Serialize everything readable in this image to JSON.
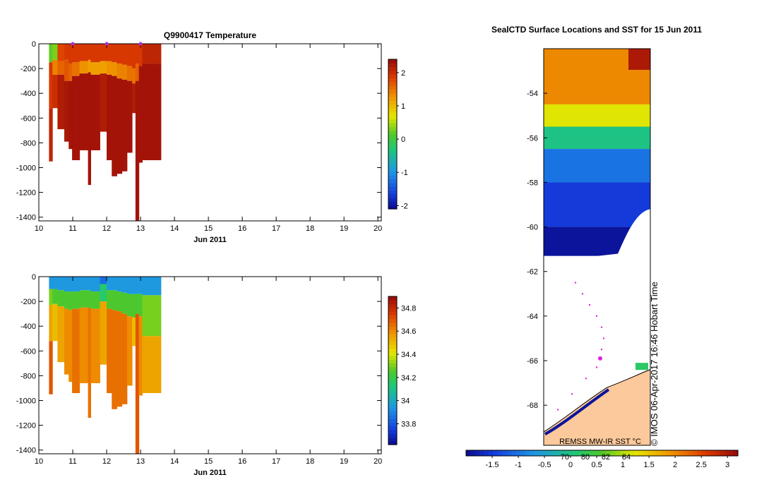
{
  "chart_data": [
    {
      "type": "heatmap",
      "title": "Q9900417  Temperature",
      "xlabel": "Jun 2011",
      "x_ticks": [
        10,
        11,
        12,
        13,
        14,
        15,
        16,
        17,
        18,
        19,
        20
      ],
      "xlim": [
        10,
        20.1
      ],
      "y_ticks": [
        0,
        -200,
        -400,
        -600,
        -800,
        -1000,
        -1200,
        -1400
      ],
      "ylim": [
        -1430,
        0
      ],
      "colorbar_ticks": [
        -2,
        -1,
        0,
        1,
        2
      ],
      "colorbar_range": [
        -2.1,
        2.4
      ],
      "profile_markers_x": [
        11.0,
        12.0,
        13.0
      ],
      "profiles": [
        {
          "x0": 10.3,
          "x1": 10.4,
          "bottom": -950,
          "layers": [
            [
              0,
              -150,
              0.2
            ],
            [
              -150,
              -520,
              1.9
            ],
            [
              -520,
              -950,
              2.1
            ]
          ]
        },
        {
          "x0": 10.4,
          "x1": 10.55,
          "bottom": -520,
          "layers": [
            [
              0,
              -130,
              0.3
            ],
            [
              -130,
              -250,
              1.4
            ],
            [
              -250,
              -520,
              2.0
            ]
          ]
        },
        {
          "x0": 10.55,
          "x1": 10.75,
          "bottom": -690,
          "layers": [
            [
              0,
              -140,
              1.8
            ],
            [
              -140,
              -250,
              1.6
            ],
            [
              -250,
              -690,
              2.2
            ]
          ]
        },
        {
          "x0": 10.75,
          "x1": 10.88,
          "bottom": -790,
          "layers": [
            [
              0,
              -130,
              1.9
            ],
            [
              -130,
              -300,
              1.7
            ],
            [
              -300,
              -790,
              2.25
            ]
          ]
        },
        {
          "x0": 10.88,
          "x1": 10.98,
          "bottom": -850,
          "layers": [
            [
              0,
              -160,
              1.9
            ],
            [
              -160,
              -300,
              1.6
            ],
            [
              -300,
              -850,
              2.3
            ]
          ]
        },
        {
          "x0": 10.98,
          "x1": 11.2,
          "bottom": -940,
          "layers": [
            [
              0,
              -150,
              1.9
            ],
            [
              -150,
              -260,
              1.5
            ],
            [
              -260,
              -940,
              2.3
            ]
          ]
        },
        {
          "x0": 11.2,
          "x1": 11.45,
          "bottom": -860,
          "layers": [
            [
              0,
              -140,
              1.9
            ],
            [
              -140,
              -240,
              1.3
            ],
            [
              -240,
              -860,
              2.3
            ]
          ]
        },
        {
          "x0": 11.45,
          "x1": 11.53,
          "bottom": -1140,
          "layers": [
            [
              0,
              -130,
              1.9
            ],
            [
              -130,
              -230,
              1.2
            ],
            [
              -230,
              -1140,
              2.3
            ]
          ]
        },
        {
          "x0": 11.53,
          "x1": 11.8,
          "bottom": -860,
          "layers": [
            [
              0,
              -150,
              1.9
            ],
            [
              -150,
              -250,
              1.2
            ],
            [
              -250,
              -860,
              2.3
            ]
          ]
        },
        {
          "x0": 11.8,
          "x1": 12.0,
          "bottom": -710,
          "layers": [
            [
              0,
              -140,
              1.9
            ],
            [
              -140,
              -240,
              1.2
            ],
            [
              -240,
              -710,
              2.2
            ]
          ]
        },
        {
          "x0": 12.0,
          "x1": 12.15,
          "bottom": -940,
          "layers": [
            [
              0,
              -140,
              1.9
            ],
            [
              -140,
              -250,
              1.3
            ],
            [
              -250,
              -940,
              2.3
            ]
          ]
        },
        {
          "x0": 12.15,
          "x1": 12.3,
          "bottom": -1070,
          "layers": [
            [
              0,
              -150,
              1.9
            ],
            [
              -150,
              -260,
              1.3
            ],
            [
              -260,
              -1070,
              2.3
            ]
          ]
        },
        {
          "x0": 12.3,
          "x1": 12.45,
          "bottom": -1050,
          "layers": [
            [
              0,
              -160,
              1.9
            ],
            [
              -160,
              -280,
              1.4
            ],
            [
              -280,
              -1050,
              2.3
            ]
          ]
        },
        {
          "x0": 12.45,
          "x1": 12.6,
          "bottom": -1030,
          "layers": [
            [
              0,
              -170,
              1.9
            ],
            [
              -170,
              -290,
              1.4
            ],
            [
              -290,
              -1030,
              2.3
            ]
          ]
        },
        {
          "x0": 12.6,
          "x1": 12.75,
          "bottom": -880,
          "layers": [
            [
              0,
              -180,
              1.9
            ],
            [
              -180,
              -300,
              1.5
            ],
            [
              -300,
              -880,
              2.3
            ]
          ]
        },
        {
          "x0": 12.75,
          "x1": 12.85,
          "bottom": -560,
          "layers": [
            [
              0,
              -200,
              1.9
            ],
            [
              -200,
              -320,
              1.5
            ],
            [
              -320,
              -560,
              2.2
            ]
          ]
        },
        {
          "x0": 12.85,
          "x1": 12.95,
          "bottom": -1430,
          "layers": [
            [
              0,
              -160,
              1.9
            ],
            [
              -160,
              -300,
              1.6
            ],
            [
              -300,
              -1430,
              2.3
            ]
          ]
        },
        {
          "x0": 12.95,
          "x1": 13.05,
          "bottom": -960,
          "layers": [
            [
              0,
              -180,
              1.9
            ],
            [
              -180,
              -960,
              2.3
            ]
          ]
        },
        {
          "x0": 13.05,
          "x1": 13.6,
          "bottom": -940,
          "layers": [
            [
              0,
              -160,
              2.1
            ],
            [
              -160,
              -940,
              2.3
            ]
          ]
        }
      ]
    },
    {
      "type": "heatmap",
      "title": "",
      "xlabel": "Jun 2011",
      "x_ticks": [
        10,
        11,
        12,
        13,
        14,
        15,
        16,
        17,
        18,
        19,
        20
      ],
      "xlim": [
        10,
        20.1
      ],
      "y_ticks": [
        0,
        -200,
        -400,
        -600,
        -800,
        -1000,
        -1200,
        -1400
      ],
      "ylim": [
        -1430,
        0
      ],
      "colorbar_ticks": [
        33.8,
        34,
        34.2,
        34.4,
        34.6,
        34.8
      ],
      "colorbar_range": [
        33.62,
        34.9
      ],
      "profiles": [
        {
          "x0": 10.3,
          "x1": 10.4,
          "bottom": -950,
          "layers": [
            [
              0,
              -100,
              33.95
            ],
            [
              -100,
              -230,
              34.3
            ],
            [
              -230,
              -520,
              34.55
            ],
            [
              -520,
              -950,
              34.7
            ]
          ]
        },
        {
          "x0": 10.4,
          "x1": 10.55,
          "bottom": -520,
          "layers": [
            [
              0,
              -100,
              33.95
            ],
            [
              -100,
              -220,
              34.25
            ],
            [
              -220,
              -520,
              34.5
            ]
          ]
        },
        {
          "x0": 10.55,
          "x1": 10.75,
          "bottom": -690,
          "layers": [
            [
              0,
              -110,
              33.95
            ],
            [
              -110,
              -240,
              34.25
            ],
            [
              -240,
              -690,
              34.55
            ]
          ]
        },
        {
          "x0": 10.75,
          "x1": 10.88,
          "bottom": -790,
          "layers": [
            [
              0,
              -120,
              33.95
            ],
            [
              -120,
              -260,
              34.25
            ],
            [
              -260,
              -790,
              34.6
            ]
          ]
        },
        {
          "x0": 10.88,
          "x1": 10.98,
          "bottom": -850,
          "layers": [
            [
              0,
              -120,
              33.95
            ],
            [
              -120,
              -270,
              34.25
            ],
            [
              -270,
              -850,
              34.6
            ]
          ]
        },
        {
          "x0": 10.98,
          "x1": 11.2,
          "bottom": -940,
          "layers": [
            [
              0,
              -120,
              33.95
            ],
            [
              -120,
              -260,
              34.25
            ],
            [
              -260,
              -940,
              34.65
            ]
          ]
        },
        {
          "x0": 11.2,
          "x1": 11.45,
          "bottom": -860,
          "layers": [
            [
              0,
              -110,
              33.95
            ],
            [
              -110,
              -250,
              34.25
            ],
            [
              -250,
              -860,
              34.6
            ]
          ]
        },
        {
          "x0": 11.45,
          "x1": 11.53,
          "bottom": -1140,
          "layers": [
            [
              0,
              -110,
              33.95
            ],
            [
              -110,
              -250,
              34.25
            ],
            [
              -250,
              -1140,
              34.65
            ]
          ]
        },
        {
          "x0": 11.53,
          "x1": 11.8,
          "bottom": -860,
          "layers": [
            [
              0,
              -120,
              33.95
            ],
            [
              -120,
              -260,
              34.25
            ],
            [
              -260,
              -860,
              34.6
            ]
          ]
        },
        {
          "x0": 11.8,
          "x1": 12.0,
          "bottom": -710,
          "layers": [
            [
              0,
              -60,
              33.85
            ],
            [
              -60,
              -200,
              34.15
            ],
            [
              -200,
              -710,
              34.55
            ]
          ]
        },
        {
          "x0": 12.0,
          "x1": 12.15,
          "bottom": -940,
          "layers": [
            [
              0,
              -110,
              33.95
            ],
            [
              -110,
              -260,
              34.25
            ],
            [
              -260,
              -940,
              34.65
            ]
          ]
        },
        {
          "x0": 12.15,
          "x1": 12.3,
          "bottom": -1070,
          "layers": [
            [
              0,
              -110,
              33.95
            ],
            [
              -110,
              -270,
              34.25
            ],
            [
              -270,
              -1070,
              34.65
            ]
          ]
        },
        {
          "x0": 12.3,
          "x1": 12.45,
          "bottom": -1050,
          "layers": [
            [
              0,
              -120,
              33.95
            ],
            [
              -120,
              -280,
              34.25
            ],
            [
              -280,
              -1050,
              34.65
            ]
          ]
        },
        {
          "x0": 12.45,
          "x1": 12.6,
          "bottom": -1030,
          "layers": [
            [
              0,
              -130,
              33.95
            ],
            [
              -130,
              -300,
              34.25
            ],
            [
              -300,
              -1030,
              34.65
            ]
          ]
        },
        {
          "x0": 12.6,
          "x1": 12.75,
          "bottom": -880,
          "layers": [
            [
              0,
              -140,
              33.95
            ],
            [
              -140,
              -320,
              34.25
            ],
            [
              -320,
              -880,
              34.6
            ]
          ]
        },
        {
          "x0": 12.75,
          "x1": 12.85,
          "bottom": -560,
          "layers": [
            [
              0,
              -140,
              33.95
            ],
            [
              -140,
              -330,
              34.25
            ],
            [
              -330,
              -560,
              34.5
            ]
          ]
        },
        {
          "x0": 12.85,
          "x1": 12.95,
          "bottom": -1430,
          "layers": [
            [
              0,
              -140,
              33.95
            ],
            [
              -140,
              -300,
              34.25
            ],
            [
              -300,
              -1430,
              34.7
            ]
          ]
        },
        {
          "x0": 12.95,
          "x1": 13.05,
          "bottom": -960,
          "layers": [
            [
              0,
              -140,
              33.95
            ],
            [
              -140,
              -320,
              34.25
            ],
            [
              -320,
              -960,
              34.6
            ]
          ]
        },
        {
          "x0": 13.05,
          "x1": 13.6,
          "bottom": -940,
          "layers": [
            [
              0,
              -150,
              33.95
            ],
            [
              -150,
              -480,
              34.3
            ],
            [
              -480,
              -940,
              34.55
            ]
          ]
        }
      ]
    },
    {
      "type": "heatmap",
      "title": "SealCTD Surface Locations and SST for 15 Jun 2011",
      "y_ticks": [
        -54,
        -56,
        -58,
        -60,
        -62,
        -64,
        -66,
        -68
      ],
      "ylim": [
        -69.8,
        -52.0
      ],
      "colorbar_ticks": [
        -1.5,
        -1,
        -0.5,
        0,
        0.5,
        1,
        1.5,
        2,
        2.5,
        3
      ],
      "colorbar_range": [
        -2.0,
        3.2
      ],
      "inner_ticks": [
        "70",
        "80",
        "82",
        "84"
      ],
      "caption": "REMSS MW-IR SST °C",
      "timestamp": "© IMOS 06-Apr-2017 16:46 Hobart Time",
      "land_color": "#fbc99b",
      "track_color": "#e020e0",
      "sst_bands": [
        {
          "lat_top": -52.0,
          "lat_bottom": -54.5,
          "sst": 2.0
        },
        {
          "lat_top": -54.5,
          "lat_bottom": -55.5,
          "sst": 1.2
        },
        {
          "lat_top": -55.5,
          "lat_bottom": -56.5,
          "sst": 0.0
        },
        {
          "lat_top": -56.5,
          "lat_bottom": -58.0,
          "sst": -1.0
        },
        {
          "lat_top": -58.0,
          "lat_bottom": -60.0,
          "sst": -1.5
        },
        {
          "lat_top": -60.0,
          "lat_bottom": -61.3,
          "sst": -1.9
        }
      ]
    }
  ]
}
